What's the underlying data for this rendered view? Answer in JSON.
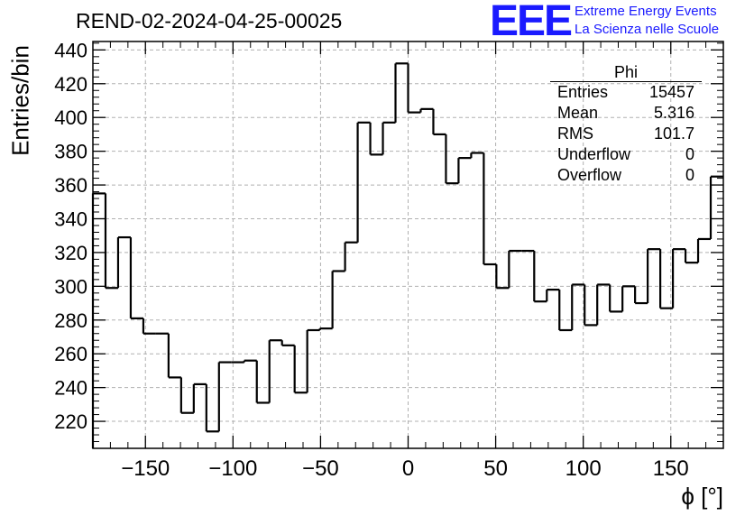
{
  "title": "REND-02-2024-04-25-00025",
  "logo": {
    "mark": "EEE",
    "line1": "Extreme Energy Events",
    "line2": "La Scienza nelle Scuole",
    "color": "#1a1aff"
  },
  "stats_box": {
    "name": "Phi",
    "rows": [
      {
        "label": "Entries",
        "value": "15457"
      },
      {
        "label": "Mean",
        "value": "5.316"
      },
      {
        "label": "RMS",
        "value": "101.7"
      },
      {
        "label": "Underflow",
        "value": "0"
      },
      {
        "label": "Overflow",
        "value": "0"
      }
    ]
  },
  "chart_data": {
    "type": "bar",
    "style": "step-histogram",
    "title": "REND-02-2024-04-25-00025",
    "xlabel": "ϕ [°]",
    "ylabel": "Entries/bin",
    "xlim": [
      -180,
      180
    ],
    "ylim": [
      204,
      445
    ],
    "bin_width": 7.2,
    "x_ticks": [
      -150,
      -100,
      -50,
      0,
      50,
      100,
      150
    ],
    "x_tick_labels": [
      "−150",
      "−100",
      "−50",
      "0",
      "50",
      "100",
      "150"
    ],
    "y_ticks": [
      220,
      240,
      260,
      280,
      300,
      320,
      340,
      360,
      380,
      400,
      420,
      440
    ],
    "grid": true,
    "line_color": "#000000",
    "values": [
      355,
      299,
      329,
      281,
      272,
      272,
      246,
      225,
      242,
      214,
      255,
      255,
      256,
      231,
      268,
      265,
      237,
      274,
      275,
      309,
      326,
      397,
      378,
      397,
      432,
      403,
      405,
      390,
      361,
      376,
      379,
      313,
      299,
      321,
      321,
      291,
      298,
      274,
      301,
      277,
      301,
      285,
      300,
      290,
      322,
      287,
      322,
      314,
      328,
      365
    ]
  }
}
